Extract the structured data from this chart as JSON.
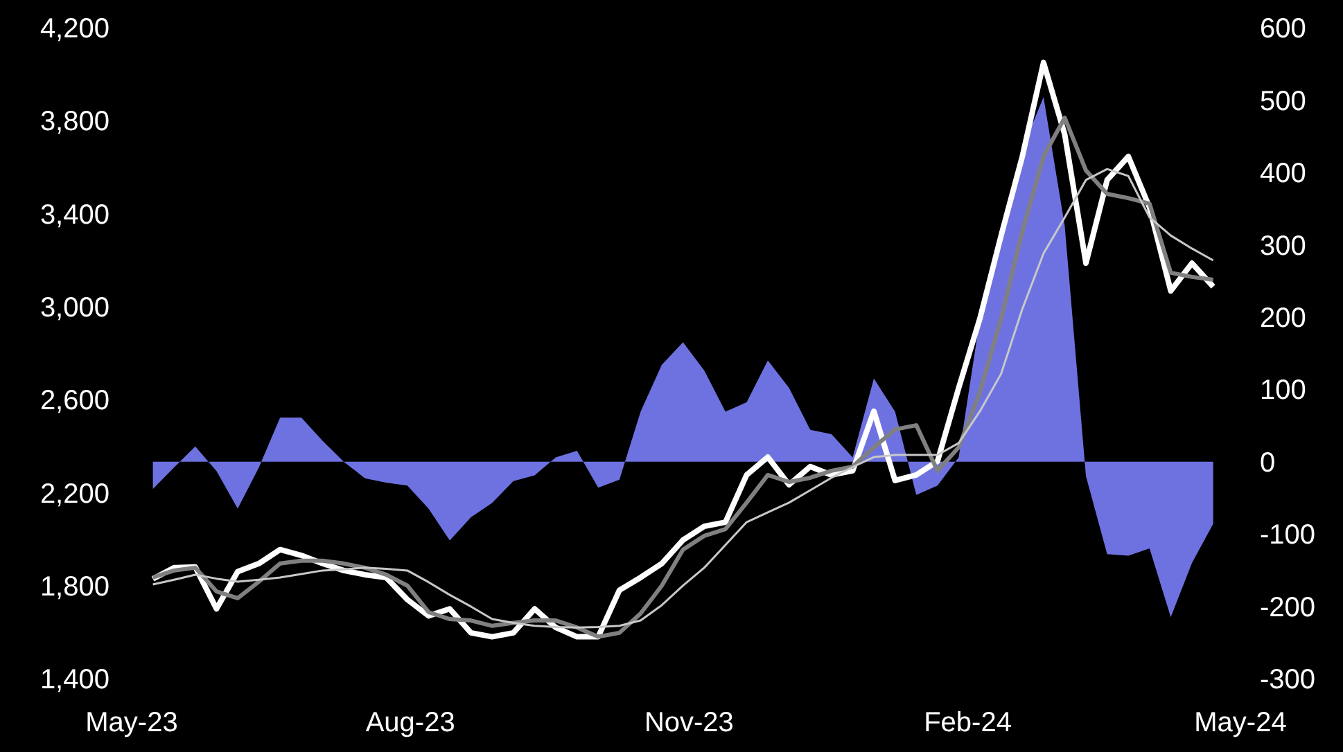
{
  "chart_data": {
    "type": "line",
    "x": [
      "2023-05-08",
      "2023-05-15",
      "2023-05-22",
      "2023-05-29",
      "2023-06-05",
      "2023-06-12",
      "2023-06-19",
      "2023-06-26",
      "2023-07-03",
      "2023-07-10",
      "2023-07-17",
      "2023-07-24",
      "2023-07-31",
      "2023-08-07",
      "2023-08-14",
      "2023-08-21",
      "2023-08-28",
      "2023-09-04",
      "2023-09-11",
      "2023-09-18",
      "2023-09-25",
      "2023-10-02",
      "2023-10-09",
      "2023-10-16",
      "2023-10-23",
      "2023-10-30",
      "2023-11-06",
      "2023-11-13",
      "2023-11-20",
      "2023-11-27",
      "2023-12-04",
      "2023-12-11",
      "2023-12-18",
      "2023-12-25",
      "2024-01-01",
      "2024-01-08",
      "2024-01-15",
      "2024-01-22",
      "2024-01-29",
      "2024-02-05",
      "2024-02-12",
      "2024-02-19",
      "2024-02-26",
      "2024-03-04",
      "2024-03-11",
      "2024-03-18",
      "2024-03-25",
      "2024-04-01",
      "2024-04-08",
      "2024-04-15",
      "2024-04-22"
    ],
    "series": [
      {
        "type": "area",
        "axis": "y2",
        "color": "#6e72e0",
        "values": [
          -38,
          -8,
          21,
          -13,
          -65,
          -8,
          61,
          61,
          29,
          0,
          -23,
          -29,
          -33,
          -65,
          -109,
          -77,
          -57,
          -27,
          -19,
          6,
          15,
          -36,
          -25,
          69,
          134,
          165,
          126,
          69,
          82,
          140,
          102,
          44,
          38,
          6,
          115,
          69,
          -46,
          -33,
          6,
          197,
          326,
          433,
          504,
          326,
          -20,
          -128,
          -130,
          -120,
          -215,
          -140,
          -86
        ]
      },
      {
        "color": "#ffffff",
        "values": [
          1829,
          1877,
          1880,
          1700,
          1860,
          1895,
          1955,
          1930,
          1895,
          1865,
          1847,
          1835,
          1740,
          1670,
          1700,
          1597,
          1580,
          1597,
          1700,
          1620,
          1580,
          1580,
          1780,
          1835,
          1895,
          1996,
          2055,
          2073,
          2276,
          2353,
          2234,
          2312,
          2276,
          2294,
          2550,
          2252,
          2276,
          2335,
          2651,
          2949,
          3306,
          3646,
          4050,
          3741,
          3187,
          3545,
          3646,
          3426,
          3068,
          3187,
          3086
        ]
      },
      {
        "color": "#808080",
        "values": [
          1835,
          1865,
          1877,
          1775,
          1746,
          1817,
          1895,
          1907,
          1907,
          1895,
          1877,
          1847,
          1800,
          1686,
          1656,
          1650,
          1627,
          1640,
          1650,
          1650,
          1620,
          1580,
          1597,
          1680,
          1800,
          1955,
          2014,
          2043,
          2157,
          2276,
          2246,
          2264,
          2294,
          2312,
          2395,
          2472,
          2490,
          2294,
          2395,
          2633,
          2949,
          3324,
          3646,
          3813,
          3586,
          3485,
          3467,
          3443,
          3146,
          3128,
          3116
        ]
      },
      {
        "color": "#c8c8c8",
        "values": [
          1805,
          1825,
          1847,
          1830,
          1817,
          1825,
          1835,
          1850,
          1865,
          1870,
          1877,
          1872,
          1865,
          1815,
          1760,
          1710,
          1656,
          1640,
          1627,
          1622,
          1620,
          1622,
          1627,
          1650,
          1716,
          1800,
          1877,
          1975,
          2073,
          2115,
          2157,
          2210,
          2264,
          2310,
          2353,
          2362,
          2362,
          2362,
          2413,
          2550,
          2711,
          2990,
          3229,
          3384,
          3545,
          3592,
          3562,
          3384,
          3306,
          3250,
          3199
        ]
      }
    ],
    "xlim": [
      "2023-05-01",
      "2024-05-01"
    ],
    "xticks": [
      {
        "value": "2023-05-01",
        "label": "May-23"
      },
      {
        "value": "2023-08-01",
        "label": "Aug-23"
      },
      {
        "value": "2023-11-01",
        "label": "Nov-23"
      },
      {
        "value": "2024-02-01",
        "label": "Feb-24"
      },
      {
        "value": "2024-05-01",
        "label": "May-24"
      }
    ],
    "ylim": [
      1400,
      4200
    ],
    "yticks": [
      {
        "value": 1400,
        "label": "1,400"
      },
      {
        "value": 1800,
        "label": "1,800"
      },
      {
        "value": 2200,
        "label": "2,200"
      },
      {
        "value": 2600,
        "label": "2,600"
      },
      {
        "value": 3000,
        "label": "3,000"
      },
      {
        "value": 3400,
        "label": "3,400"
      },
      {
        "value": 3800,
        "label": "3,800"
      },
      {
        "value": 4200,
        "label": "4,200"
      }
    ],
    "y2lim": [
      -300,
      600
    ],
    "y2ticks": [
      -300,
      -200,
      -100,
      0,
      100,
      200,
      300,
      400,
      500,
      600
    ]
  }
}
